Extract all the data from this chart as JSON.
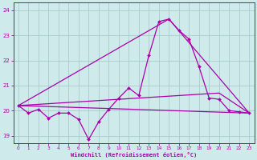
{
  "xlabel": "Windchill (Refroidissement éolien,°C)",
  "bg_color": "#ceeaea",
  "grid_color": "#aacccc",
  "line_color": "#aa00aa",
  "xlim": [
    -0.5,
    23.5
  ],
  "ylim": [
    18.7,
    24.3
  ],
  "yticks": [
    19,
    20,
    21,
    22,
    23,
    24
  ],
  "xticks": [
    0,
    1,
    2,
    3,
    4,
    5,
    6,
    7,
    8,
    9,
    10,
    11,
    12,
    13,
    14,
    15,
    16,
    17,
    18,
    19,
    20,
    21,
    22,
    23
  ],
  "series": [
    {
      "x": [
        0,
        1,
        2,
        3,
        4,
        5,
        6,
        7,
        8,
        9,
        10,
        11,
        12,
        13,
        14,
        15,
        16,
        17,
        18,
        19,
        20,
        21,
        22,
        23
      ],
      "y": [
        20.2,
        19.9,
        20.05,
        19.7,
        19.9,
        19.9,
        19.65,
        18.85,
        19.55,
        20.05,
        20.5,
        20.9,
        20.6,
        22.2,
        23.55,
        23.65,
        23.2,
        22.85,
        21.75,
        20.5,
        20.45,
        20.0,
        19.95,
        19.9
      ],
      "marker": "D",
      "markersize": 2.0,
      "linewidth": 0.9,
      "has_marker": true
    },
    {
      "x": [
        0,
        23
      ],
      "y": [
        20.2,
        19.9
      ],
      "linewidth": 0.9,
      "has_marker": false
    },
    {
      "x": [
        0,
        15,
        23
      ],
      "y": [
        20.2,
        23.65,
        19.9
      ],
      "linewidth": 0.9,
      "has_marker": false
    },
    {
      "x": [
        0,
        20,
        23
      ],
      "y": [
        20.2,
        20.7,
        19.9
      ],
      "linewidth": 0.9,
      "has_marker": false
    }
  ]
}
